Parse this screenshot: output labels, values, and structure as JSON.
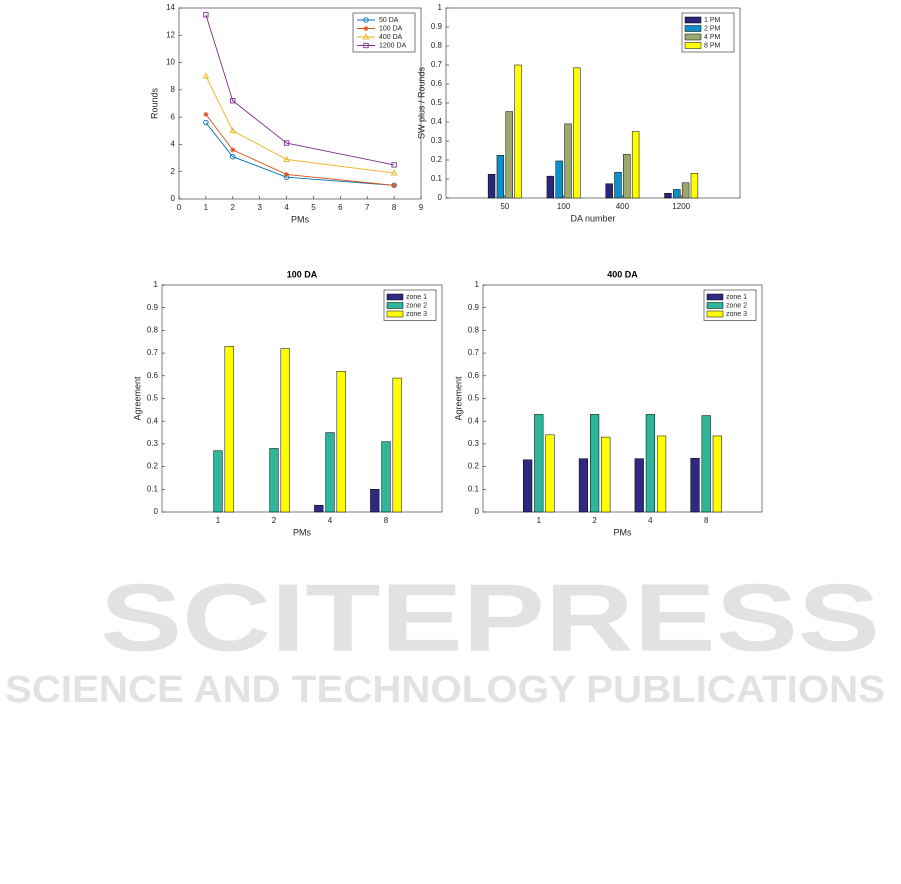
{
  "watermark": {
    "title": "SCITEPRESS",
    "subtitle": "SCIENCE AND TECHNOLOGY PUBLICATIONS"
  },
  "chart_data": [
    {
      "type": "line",
      "xlabel": "PMs",
      "ylabel": "Rounds",
      "x": [
        1,
        2,
        4,
        8
      ],
      "xlim": [
        0,
        9
      ],
      "xticks": [
        0,
        1,
        2,
        3,
        4,
        5,
        6,
        7,
        8,
        9
      ],
      "ylim": [
        0,
        14
      ],
      "yticks": [
        0,
        2,
        4,
        6,
        8,
        10,
        12,
        14
      ],
      "legend": "northeast",
      "series": [
        {
          "name": "50 DA",
          "color": "#0072bd",
          "marker": "circle",
          "values": [
            5.6,
            3.1,
            1.6,
            1.0
          ]
        },
        {
          "name": "100 DA",
          "color": "#d95319",
          "marker": "star",
          "values": [
            6.2,
            3.6,
            1.8,
            1.0
          ]
        },
        {
          "name": "400 DA",
          "color": "#edb120",
          "marker": "triangle",
          "values": [
            9.0,
            5.0,
            2.9,
            1.9
          ]
        },
        {
          "name": "1200 DA",
          "color": "#7e2f8e",
          "marker": "square",
          "values": [
            13.5,
            7.2,
            4.1,
            2.5
          ]
        }
      ]
    },
    {
      "type": "bar",
      "xlabel": "DA number",
      "ylabel": "SW plus / Rounds",
      "categories": [
        "50",
        "100",
        "400",
        "1200"
      ],
      "ylim": [
        0,
        1
      ],
      "yticks": [
        0,
        0.1,
        0.2,
        0.3,
        0.4,
        0.5,
        0.6,
        0.7,
        0.8,
        0.9,
        1
      ],
      "legend": "northeast",
      "series": [
        {
          "name": "1 PM",
          "color": "#2a2878",
          "values": [
            0.125,
            0.115,
            0.075,
            0.025
          ]
        },
        {
          "name": "2 PM",
          "color": "#0d8fc9",
          "values": [
            0.225,
            0.195,
            0.135,
            0.045
          ]
        },
        {
          "name": "4 PM",
          "color": "#9aaa6f",
          "values": [
            0.455,
            0.39,
            0.23,
            0.08
          ]
        },
        {
          "name": "8 PM",
          "color": "#ffff00",
          "values": [
            0.7,
            0.685,
            0.35,
            0.13
          ]
        }
      ]
    },
    {
      "type": "bar",
      "title": "100 DA",
      "xlabel": "PMs",
      "ylabel": "Agreement",
      "categories": [
        "1",
        "2",
        "4",
        "8"
      ],
      "ylim": [
        0,
        1
      ],
      "yticks": [
        0,
        0.1,
        0.2,
        0.3,
        0.4,
        0.5,
        0.6,
        0.7,
        0.8,
        0.9,
        1
      ],
      "legend": "northeast",
      "series": [
        {
          "name": "zone 1",
          "color": "#2e2a80",
          "values": [
            0,
            0,
            0.03,
            0.1
          ]
        },
        {
          "name": "zone 2",
          "color": "#2fb59a",
          "values": [
            0.27,
            0.28,
            0.35,
            0.31
          ]
        },
        {
          "name": "zone 3",
          "color": "#ffff00",
          "values": [
            0.73,
            0.72,
            0.62,
            0.59
          ]
        }
      ]
    },
    {
      "type": "bar",
      "title": "400 DA",
      "xlabel": "PMs",
      "ylabel": "Agreement",
      "categories": [
        "1",
        "2",
        "4",
        "8"
      ],
      "ylim": [
        0,
        1
      ],
      "yticks": [
        0,
        0.1,
        0.2,
        0.3,
        0.4,
        0.5,
        0.6,
        0.7,
        0.8,
        0.9,
        1
      ],
      "legend": "northeast",
      "series": [
        {
          "name": "zone 1",
          "color": "#2e2a80",
          "values": [
            0.23,
            0.235,
            0.235,
            0.237
          ]
        },
        {
          "name": "zone 2",
          "color": "#2fb59a",
          "values": [
            0.43,
            0.43,
            0.43,
            0.425
          ]
        },
        {
          "name": "zone 3",
          "color": "#ffff00",
          "values": [
            0.34,
            0.33,
            0.335,
            0.335
          ]
        }
      ]
    }
  ]
}
